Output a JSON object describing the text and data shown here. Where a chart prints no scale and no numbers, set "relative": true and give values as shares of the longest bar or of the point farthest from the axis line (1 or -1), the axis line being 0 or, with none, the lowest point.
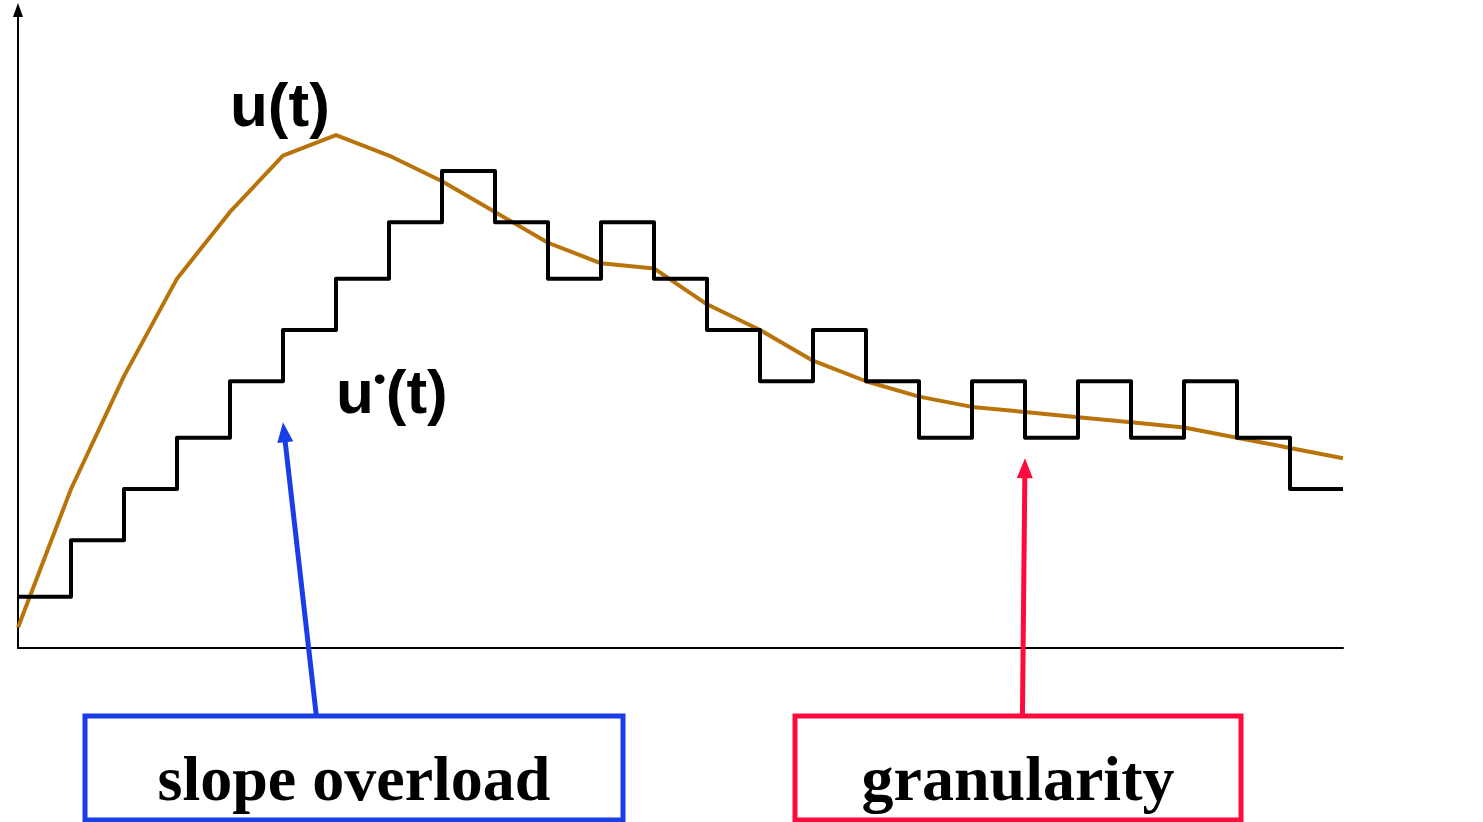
{
  "chart_data": {
    "type": "line",
    "relative": true,
    "categories": [
      null,
      null,
      null,
      null,
      null,
      null,
      null,
      null,
      null,
      null,
      null,
      null,
      null,
      null,
      null,
      null,
      null,
      null,
      null,
      null,
      null,
      null,
      null,
      null,
      null,
      null
    ],
    "series": [
      {
        "name": "u(t)",
        "type": "line",
        "color": "#b8740a",
        "values": [
          0.04,
          0.31,
          0.53,
          0.72,
          0.85,
          0.96,
          1.0,
          0.96,
          0.91,
          0.85,
          0.79,
          0.75,
          0.74,
          0.67,
          0.62,
          0.56,
          0.52,
          0.49,
          0.47,
          0.46,
          0.45,
          0.44,
          0.43,
          0.41,
          0.39,
          0.37
        ]
      },
      {
        "name": "u$^{•}$(t)",
        "type": "step",
        "color": "#000000",
        "values": [
          0.1,
          0.21,
          0.31,
          0.41,
          0.52,
          0.62,
          0.72,
          0.83,
          0.93,
          0.83,
          0.72,
          0.83,
          0.72,
          0.62,
          0.52,
          0.62,
          0.52,
          0.41,
          0.52,
          0.41,
          0.52,
          0.41,
          0.52,
          0.41,
          0.31,
          0.31
        ]
      }
    ],
    "annotations": [
      "slope overload",
      "granularity"
    ],
    "marker": "none",
    "line_style": "solid",
    "grid": false,
    "legend": false
  }
}
